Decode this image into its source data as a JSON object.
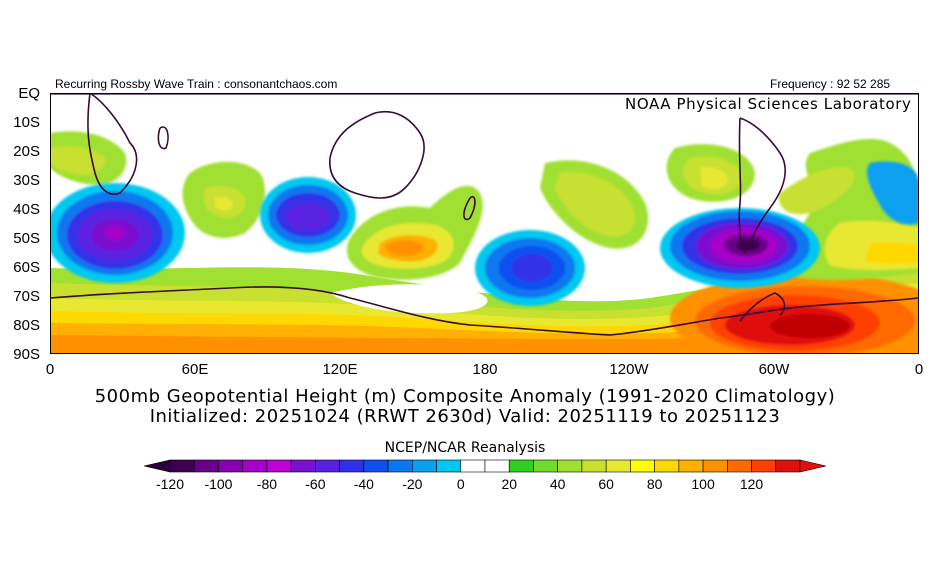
{
  "header": {
    "left_note": "Recurring Rossby Wave Train : consonantchaos.com",
    "right_note": "Frequency : 92 52 285",
    "lab_name": "NOAA Physical Sciences Laboratory"
  },
  "map": {
    "lat_labels": [
      "EQ",
      "10S",
      "20S",
      "30S",
      "40S",
      "50S",
      "60S",
      "70S",
      "80S",
      "90S"
    ],
    "lon_labels": [
      "0",
      "60E",
      "120E",
      "180",
      "120W",
      "60W",
      "0"
    ],
    "lon_range_deg": [
      0,
      360
    ],
    "lat_range_deg": [
      0,
      -90
    ],
    "anomaly_centers": [
      {
        "lon": 28,
        "lat": -50,
        "value": -80
      },
      {
        "lon": 95,
        "lat": -45,
        "value": -70
      },
      {
        "lon": 198,
        "lat": -55,
        "value": -65
      },
      {
        "lon": 287,
        "lat": -52,
        "value": -115
      },
      {
        "lon": 143,
        "lat": -53,
        "value": 60
      },
      {
        "lon": 60,
        "lat": -38,
        "value": 35
      },
      {
        "lon": 10,
        "lat": -28,
        "value": 30
      },
      {
        "lon": 270,
        "lat": -28,
        "value": 40
      },
      {
        "lon": 300,
        "lat": -82,
        "value": 115
      },
      {
        "lon": 180,
        "lat": -83,
        "value": 60
      }
    ]
  },
  "titles": {
    "line1": "500mb Geopotential Height (m) Composite Anomaly (1991-2020 Climatology)",
    "line2": "Initialized: 20251024 (RRWT 2630d) Valid: 20251119 to 20251123",
    "source": "NCEP/NCAR Reanalysis"
  },
  "colorbar": {
    "tick_labels": [
      "-120",
      "-100",
      "-80",
      "-60",
      "-40",
      "-20",
      "0",
      "20",
      "40",
      "60",
      "80",
      "100",
      "120"
    ],
    "colors": [
      "#3d0051",
      "#6a0089",
      "#8a00b0",
      "#a800c8",
      "#c000d8",
      "#7a10d0",
      "#5a20e0",
      "#3030e8",
      "#1050f0",
      "#0a78f0",
      "#0aa0f0",
      "#00c8f0",
      "#ffffff",
      "#ffffff",
      "#30d020",
      "#70dc30",
      "#a0e030",
      "#c8e030",
      "#e8e830",
      "#ffff00",
      "#ffd800",
      "#ffb000",
      "#ff9000",
      "#ff6a00",
      "#ff4000",
      "#e01010"
    ]
  }
}
